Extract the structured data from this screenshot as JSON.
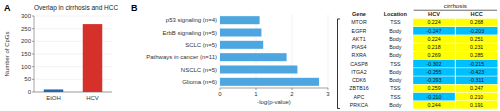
{
  "chart_data": [
    {
      "type": "bar",
      "title": "Overlap in cirrhosis and HCC",
      "annotations": [
        "A"
      ],
      "ylabel": "Number of CpGs",
      "categories": [
        "EtOH",
        "HCV"
      ],
      "values": [
        10,
        268
      ],
      "colors": [
        "#2166ac",
        "#d6302a"
      ],
      "ylim": [
        0,
        300
      ],
      "yticks": [
        0,
        50,
        100,
        150,
        200,
        250,
        300
      ]
    },
    {
      "type": "bar",
      "orientation": "horizontal",
      "annotations": [
        "B"
      ],
      "xlabel": "-log(p-value)",
      "categories": [
        "p53 signaling (n=4)",
        "ErbB signaling (n=5)",
        "SCLC (n=5)",
        "Pathways in cancer (n=11)",
        "NSCLC (n=5)",
        "Glioma (n=6)"
      ],
      "values": [
        1.1,
        1.15,
        1.2,
        1.85,
        2.15,
        2.75
      ],
      "color": "#4da6e0",
      "xlim": [
        0,
        3
      ],
      "xticks": [
        0,
        1,
        2,
        3
      ]
    },
    {
      "type": "table",
      "annotations": [
        "cirrhosis"
      ],
      "column_headers": [
        "Gene",
        "Location"
      ],
      "categories": [
        "MTOR",
        "EGFR",
        "AKT1",
        "PIAS4",
        "RXRA",
        "CASP8",
        "ITGA2",
        "CDK6",
        "ZBTB16",
        "APC",
        "PRKCA"
      ],
      "locations": [
        "TSS",
        "Body",
        "Body",
        "Body",
        "Body",
        "TSS",
        "Body",
        "Body",
        "TSS",
        "TSS",
        "Body"
      ],
      "series": [
        {
          "name": "HCV",
          "values": [
            0.224,
            -0.247,
            0.224,
            0.218,
            0.269,
            -0.302,
            -0.255,
            -0.293,
            0.259,
            -0.21,
            0.244
          ],
          "value_labels": [
            "0.224",
            "-0.247",
            "0.224",
            "0.218",
            "0.269",
            "-0.302",
            "-0.255",
            "-0.293",
            "0.259",
            "-0.210",
            "0.244"
          ],
          "colors": [
            "#ffff00",
            "#00bfff",
            "#ffff00",
            "#ffff00",
            "#ffff00",
            "#00bfff",
            "#00bfff",
            "#00bfff",
            "#ffff00",
            "#00bfff",
            "#ffff00"
          ]
        },
        {
          "name": "HCC",
          "values": [
            0.268,
            -0.203,
            0.251,
            0.231,
            0.285,
            -0.215,
            -0.423,
            -0.311,
            0.247,
            0.21,
            0.191
          ],
          "value_labels": [
            "0.268",
            "-0.203",
            "0.251",
            "0.231",
            "0.285",
            "-0.215",
            "-0.423",
            "-0.311",
            "0.247",
            "0.210",
            "0.191"
          ],
          "colors": [
            "#ffff00",
            "#00bfff",
            "#ffff00",
            "#ffff00",
            "#ffff00",
            "#00bfff",
            "#00bfff",
            "#00bfff",
            "#ffff00",
            "#ffff00",
            "#ffff00"
          ]
        }
      ]
    }
  ]
}
